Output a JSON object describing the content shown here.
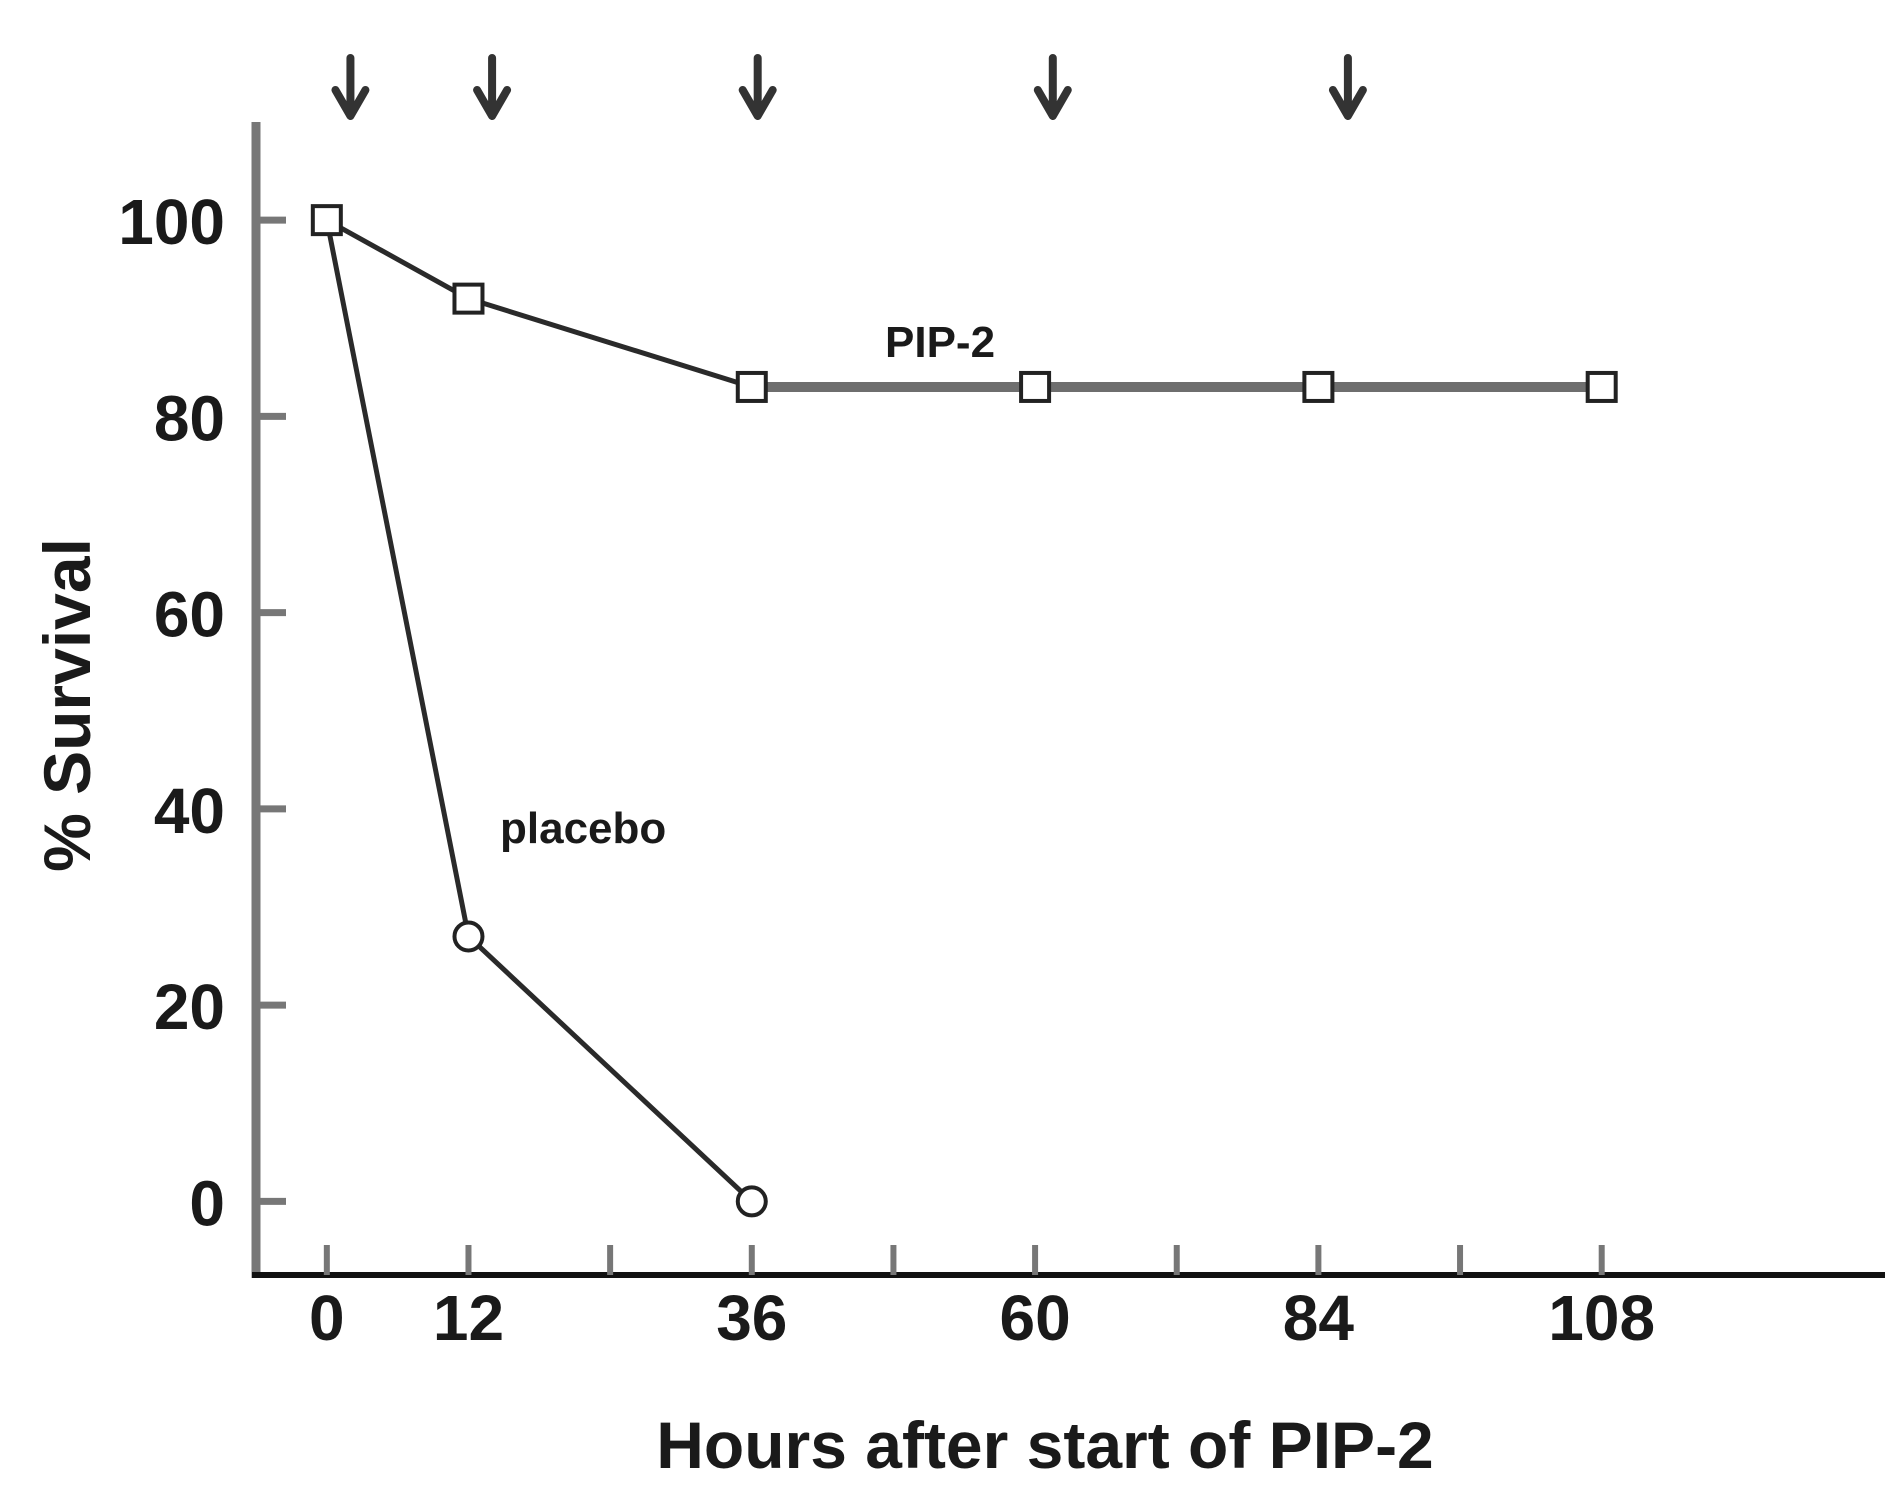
{
  "chart_data": {
    "type": "line",
    "title": "",
    "xlabel": "Hours after start of PIP-2",
    "ylabel": "% Survival",
    "xlim": [
      -6,
      132
    ],
    "ylim": [
      -7.5,
      110
    ],
    "x_ticks": [
      0,
      12,
      36,
      60,
      84,
      108
    ],
    "x_minor_ticks": [
      24,
      48,
      72,
      96
    ],
    "y_ticks": [
      0,
      20,
      40,
      60,
      80,
      100
    ],
    "dose_arrows_x": [
      2,
      14,
      36.5,
      61.5,
      86.5
    ],
    "series": [
      {
        "name": "PIP-2",
        "marker": "square",
        "color": "#6e6e6e",
        "points": [
          {
            "x": 0,
            "y": 100
          },
          {
            "x": 12,
            "y": 92
          },
          {
            "x": 36,
            "y": 83
          },
          {
            "x": 60,
            "y": 83
          },
          {
            "x": 84,
            "y": 83
          },
          {
            "x": 108,
            "y": 83
          }
        ]
      },
      {
        "name": "placebo",
        "marker": "circle",
        "color": "#2a2a2a",
        "points": [
          {
            "x": 0,
            "y": 100
          },
          {
            "x": 12,
            "y": 27
          },
          {
            "x": 36,
            "y": 0
          }
        ]
      }
    ],
    "legend": "none",
    "grid": false
  }
}
